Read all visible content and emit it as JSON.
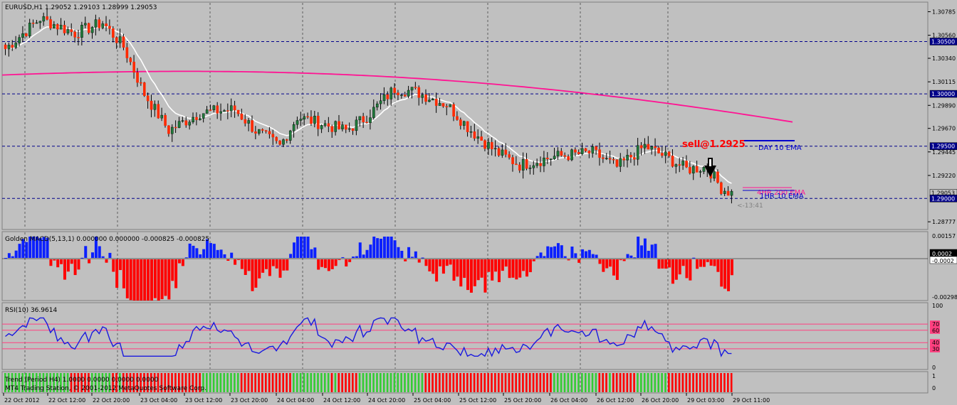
{
  "colors": {
    "background": "#c0c0c0",
    "grid": "#5e5e5e",
    "bull": "#1f7a3a",
    "bear": "#ff2a00",
    "wick": "#000000",
    "ema_fast": "#ffffff",
    "ema_slow": "#ff1493",
    "hline": "#00008b",
    "macd_pos": "#0b20ff",
    "macd_neg": "#ff0000",
    "rsi_line": "#1a1adf",
    "rsi_level": "#ff3f7f",
    "trend_up": "#33cc33",
    "trend_down": "#ff0000",
    "annotation_sell": "#ff0000",
    "annotation_blue": "#0000cd"
  },
  "main": {
    "header": "EURUSD,H1  1.29052 1.29103 1.28999 1.29053",
    "price_ticks": [
      "1.30785",
      "1.30560",
      "1.30340",
      "1.30115",
      "1.29890",
      "1.29670",
      "1.29445",
      "1.29220",
      "1.28777"
    ],
    "level_labels": [
      "1.30500",
      "1.30000",
      "1.29500",
      "1.29053",
      "1.29000"
    ],
    "annotations": {
      "sell": "sell@1.2925",
      "day_ema": "DAY 10 EMA",
      "h4_ema": "4HR 200 EMA",
      "hr_ema": "1HR 10 EMA",
      "timer": "<-13:41"
    }
  },
  "macd": {
    "header": "Golden MACD(5,13,1) 0.000000 0.000000 -0.000825 -0.000825",
    "ticks": [
      "0.00157",
      "0.0002",
      "-0.0002",
      "-0.00298"
    ]
  },
  "rsi": {
    "header": "RSI(10) 36.9614",
    "ticks": [
      "100",
      "70",
      "60",
      "40",
      "30",
      "0"
    ]
  },
  "trend": {
    "header": "Trend (Period H4) 1.0000 0.0000 0.0000 0.0000",
    "ticks": [
      "1",
      "0"
    ]
  },
  "copyright": "MT4 Trading Station, © 2001-2012 MetaQuotes Software Corp.",
  "time_labels": [
    "22 Oct 2012",
    "22 Oct 12:00",
    "22 Oct 20:00",
    "23 Oct 04:00",
    "23 Oct 12:00",
    "23 Oct 20:00",
    "24 Oct 04:00",
    "24 Oct 12:00",
    "24 Oct 20:00",
    "25 Oct 04:00",
    "25 Oct 12:00",
    "25 Oct 20:00",
    "26 Oct 04:00",
    "26 Oct 12:00",
    "26 Oct 20:00",
    "29 Oct 03:00",
    "29 Oct 11:00"
  ],
  "chart_data": {
    "type": "candlestick",
    "symbol": "EURUSD",
    "timeframe": "H1",
    "price_range": [
      1.2871,
      1.3087
    ],
    "horizontal_levels": [
      1.305,
      1.3,
      1.295,
      1.29
    ],
    "current_price": 1.29053,
    "sell_price": 1.2925,
    "series": [
      {
        "name": "Golden MACD(5,13,1)",
        "type": "histogram",
        "ylim": [
          -0.00298,
          0.00157
        ]
      },
      {
        "name": "RSI(10)",
        "type": "line",
        "levels": [
          70,
          60,
          40,
          30
        ],
        "ylim": [
          0,
          100
        ],
        "last": 36.9614
      },
      {
        "name": "Trend (Period H4)",
        "type": "histogram",
        "ylim": [
          0,
          1
        ]
      }
    ]
  }
}
